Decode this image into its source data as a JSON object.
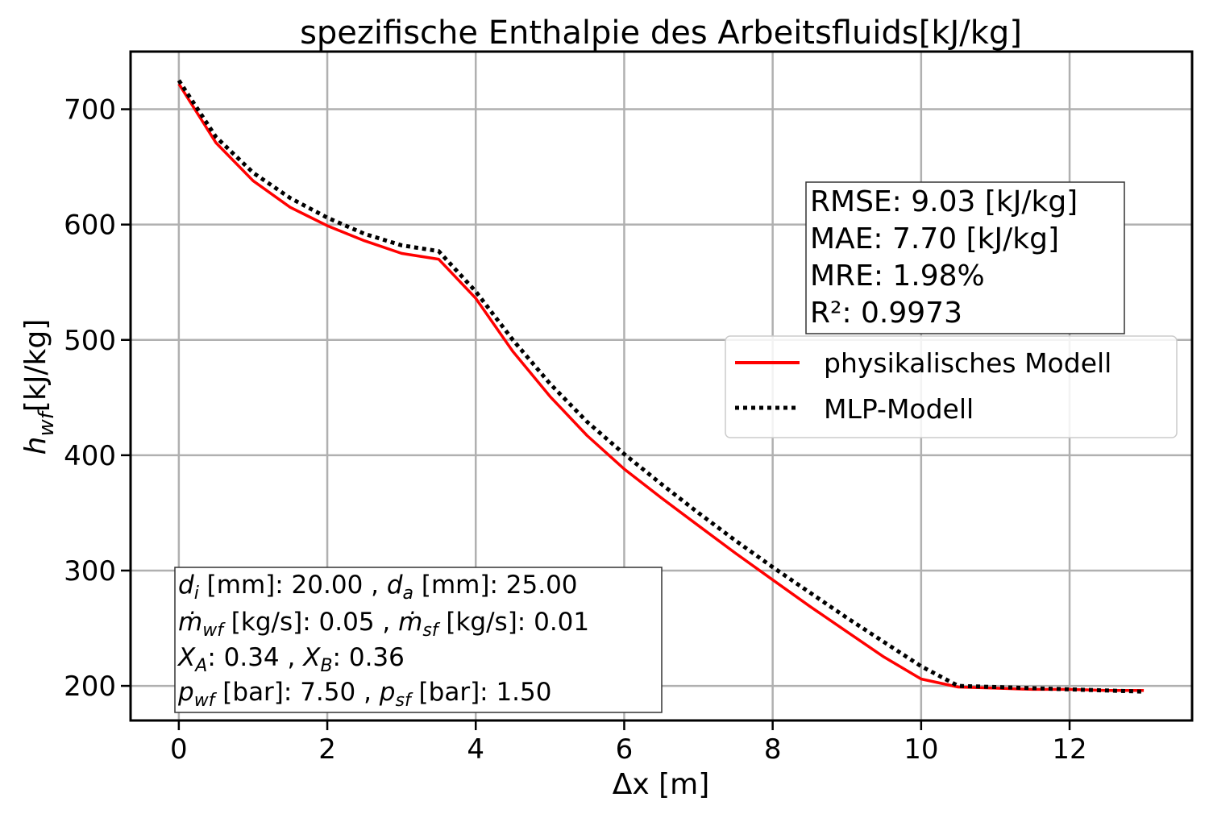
{
  "chart_data": {
    "type": "line",
    "title": "spezifische Enthalpie des Arbeitsfluids[kJ/kg]",
    "xlabel": "Δx [m]",
    "ylabel": "h_wf[kJ/kg]",
    "xlim": [
      -0.65,
      13.65
    ],
    "ylim": [
      170,
      750
    ],
    "xticks": [
      0,
      2,
      4,
      6,
      8,
      10,
      12
    ],
    "yticks": [
      200,
      300,
      400,
      500,
      600,
      700
    ],
    "grid": true,
    "legend_position": "center-right",
    "series": [
      {
        "name": "physikalisches Modell",
        "color": "#ff0000",
        "style": "solid",
        "x": [
          0,
          0.5,
          1.0,
          1.5,
          2.0,
          2.5,
          3.0,
          3.5,
          4.0,
          4.5,
          5.0,
          5.5,
          6.0,
          6.5,
          7.0,
          7.5,
          8.0,
          8.5,
          9.0,
          9.5,
          10.0,
          10.5,
          11.0,
          11.5,
          12.0,
          12.5,
          13.0
        ],
        "y": [
          722,
          671,
          638,
          615,
          599,
          586,
          575,
          570,
          536,
          490,
          451,
          417,
          388,
          363,
          339,
          315,
          292,
          269,
          247,
          225,
          206,
          199,
          198,
          197,
          197,
          196,
          196
        ]
      },
      {
        "name": "MLP-Modell",
        "color": "#000000",
        "style": "dotted",
        "x": [
          0,
          0.5,
          1.0,
          1.5,
          2.0,
          2.5,
          3.0,
          3.5,
          4.0,
          4.5,
          5.0,
          5.5,
          6.0,
          6.5,
          7.0,
          7.5,
          8.0,
          8.5,
          9.0,
          9.5,
          10.0,
          10.5,
          11.0,
          11.5,
          12.0,
          12.5,
          13.0
        ],
        "y": [
          725,
          676,
          645,
          623,
          606,
          592,
          582,
          577,
          542,
          500,
          462,
          429,
          401,
          375,
          350,
          326,
          303,
          281,
          259,
          238,
          217,
          200,
          199,
          198,
          197,
          196,
          195
        ]
      }
    ],
    "metrics_box": [
      "RMSE: 9.03 [kJ/kg]",
      "MAE: 7.70 [kJ/kg]",
      "MRE: 1.98%",
      "R²: 0.9973"
    ],
    "params_box": [
      "d_i [mm]: 20.00 , d_a [mm]: 25.00",
      "ṁ_wf [kg/s]: 0.05 , ṁ_sf [kg/s]: 0.01",
      "X_A: 0.34 , X_B: 0.36",
      "p_wf [bar]: 7.50 , p_sf [bar]: 1.50"
    ]
  }
}
